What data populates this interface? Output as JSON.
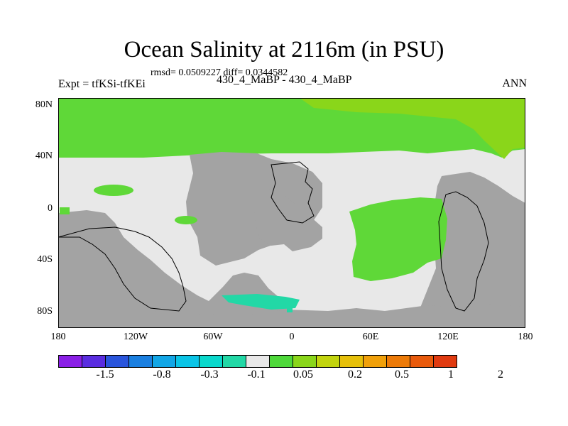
{
  "title": "Ocean Salinity at 2116m (in PSU)",
  "stats": "rmsd= 0.0509227 diff= 0.0344582",
  "left_label": "Expt = tfKSi-tfKEi",
  "center_label": "430_4_MaBP - 430_4_MaBP",
  "right_label": "ANN",
  "lat_labels": [
    "80N",
    "40N",
    "0",
    "40S",
    "80S"
  ],
  "lon_labels": [
    "180",
    "120W",
    "60W",
    "0",
    "60E",
    "120E",
    "180"
  ],
  "colorbar": {
    "colors": [
      "#8a1fe6",
      "#5a2de0",
      "#2a55dc",
      "#1a7fe0",
      "#12a6e6",
      "#0ac4e6",
      "#0ad8cc",
      "#22d8a6",
      "#e8e8e8",
      "#4ed83a",
      "#8ad61a",
      "#c2d40e",
      "#e6c00a",
      "#f0a00a",
      "#ec7a08",
      "#e85a0c",
      "#e03a10"
    ],
    "labels": [
      "-1.5",
      "-0.8",
      "-0.3",
      "-0.1",
      "0.05",
      "0.2",
      "0.5",
      "1",
      "2"
    ]
  },
  "map_colors": {
    "ocean": "#e8e8e8",
    "land": "#a3a3a3",
    "arctic": "#5fd838",
    "arctic_east": "#8ad61a",
    "teal": "#22d8a6"
  }
}
